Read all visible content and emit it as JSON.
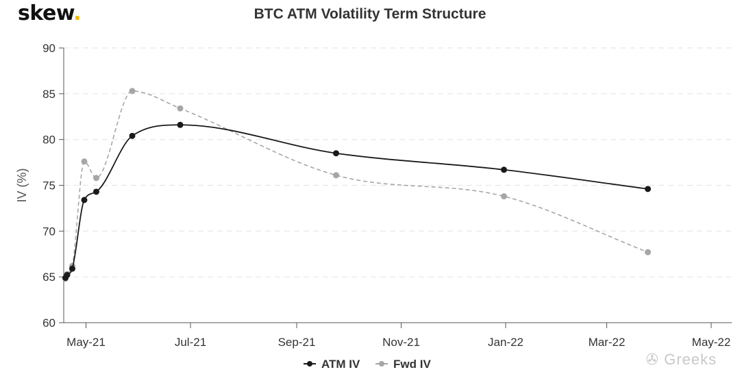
{
  "branding": {
    "logo": "skew",
    "logo_dot": ".",
    "watermark": "Greeks"
  },
  "colors": {
    "atm": "#1a1a1a",
    "fwd": "#a6a6a6",
    "grid": "#e6e6e6",
    "axis": "#555555",
    "logo_dot": "#f2b705"
  },
  "chart_data": {
    "type": "line",
    "title": "BTC ATM Volatility Term Structure",
    "xlabel": "",
    "ylabel": "IV (%)",
    "ylim": [
      60,
      90
    ],
    "yticks": [
      60,
      65,
      70,
      75,
      80,
      85,
      90
    ],
    "xlim": [
      "2021-04-18",
      "2022-05-13"
    ],
    "xticks": [
      {
        "date": "2021-05-01",
        "label": "May-21"
      },
      {
        "date": "2021-07-01",
        "label": "Jul-21"
      },
      {
        "date": "2021-09-01",
        "label": "Sep-21"
      },
      {
        "date": "2021-11-01",
        "label": "Nov-21"
      },
      {
        "date": "2022-01-01",
        "label": "Jan-22"
      },
      {
        "date": "2022-03-01",
        "label": "Mar-22"
      },
      {
        "date": "2022-05-01",
        "label": "May-22"
      }
    ],
    "grid": "horizontal-dashed",
    "legend": "bottom-center",
    "series": [
      {
        "name": "ATM IV",
        "style": "solid",
        "points": [
          {
            "x": "2021-04-19",
            "y": 64.9
          },
          {
            "x": "2021-04-20",
            "y": 65.2
          },
          {
            "x": "2021-04-23",
            "y": 65.9
          },
          {
            "x": "2021-04-30",
            "y": 73.4
          },
          {
            "x": "2021-05-07",
            "y": 74.3
          },
          {
            "x": "2021-05-28",
            "y": 80.4
          },
          {
            "x": "2021-06-25",
            "y": 81.6
          },
          {
            "x": "2021-09-24",
            "y": 78.5
          },
          {
            "x": "2021-12-31",
            "y": 76.7
          },
          {
            "x": "2022-03-25",
            "y": 74.6
          }
        ]
      },
      {
        "name": "Fwd IV",
        "style": "dashed",
        "points": [
          {
            "x": "2021-04-19",
            "y": 64.8
          },
          {
            "x": "2021-04-20",
            "y": 65.3
          },
          {
            "x": "2021-04-23",
            "y": 66.2
          },
          {
            "x": "2021-04-30",
            "y": 77.6
          },
          {
            "x": "2021-05-07",
            "y": 75.8
          },
          {
            "x": "2021-05-28",
            "y": 85.3
          },
          {
            "x": "2021-06-25",
            "y": 83.4
          },
          {
            "x": "2021-09-24",
            "y": 76.1
          },
          {
            "x": "2021-12-31",
            "y": 73.8
          },
          {
            "x": "2022-03-25",
            "y": 67.7
          }
        ]
      }
    ]
  }
}
